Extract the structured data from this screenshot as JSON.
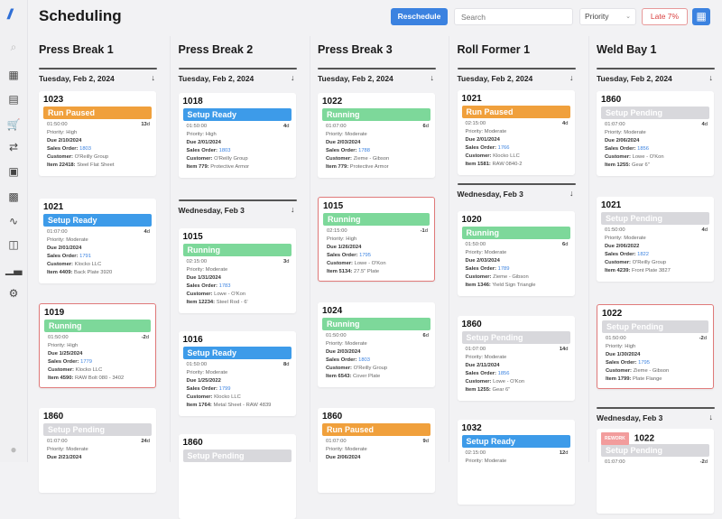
{
  "app": {
    "title": "Scheduling"
  },
  "toolbar": {
    "reschedule_label": "Reschedule",
    "search_placeholder": "Search",
    "sort_value": "Priority",
    "late_badge": "Late 7%"
  },
  "sidebar": {
    "items": [
      "search-icon",
      "dashboard-icon",
      "clipboard-icon",
      "cart-icon",
      "transfer-icon",
      "calendar-icon",
      "machines-icon",
      "activity-icon",
      "inventory-icon",
      "reports-icon",
      "settings-icon",
      "user-icon"
    ]
  },
  "status_colors": {
    "Run Paused": "#f0a03c",
    "Setup Ready": "#3d9be9",
    "Running": "#7dd89a",
    "Setup Pending": "#d8d8dc"
  },
  "labels": {
    "priority": "Priority: ",
    "due": "Due ",
    "sales_order": "Sales Order: ",
    "customer": "Customer: ",
    "item": "Item ",
    "rework": "REWORK",
    "day_suffix": "d"
  },
  "columns": [
    {
      "name": "Press Break 1",
      "entries": [
        {
          "type": "date",
          "label": "Tuesday, Feb 2, 2024"
        },
        {
          "type": "card",
          "id": "1023",
          "status": "Run Paused",
          "time": "01:50:00",
          "days": "13",
          "priority": "High",
          "due": "2/10/2024",
          "sales_order": "1803",
          "customer": "O'Reilly Group",
          "item_no": "22418:",
          "item_desc": "Steel Flat Sheet"
        },
        {
          "type": "card",
          "id": "1021",
          "status": "Setup Ready",
          "time": "01:07:00",
          "days": "4",
          "priority": "Moderate",
          "due": "2/01/2024",
          "sales_order": "1791",
          "customer": "Klocko LLC",
          "item_no": "4409:",
          "item_desc": "Back Plate 3920"
        },
        {
          "type": "card",
          "id": "1019",
          "late": true,
          "status": "Running",
          "time": "01:50:00",
          "days": "-2",
          "priority": "High",
          "due": "1/25/2024",
          "sales_order": "1779",
          "customer": "Klocko LLC",
          "item_no": "4590:",
          "item_desc": "RAW Bolt 080 - 3402"
        },
        {
          "type": "card",
          "id": "1860",
          "status": "Setup Pending",
          "time": "01:07:00",
          "days": "24",
          "priority": "Moderate",
          "due": "2/21/2024"
        }
      ]
    },
    {
      "name": "Press Break 2",
      "entries": [
        {
          "type": "date",
          "label": "Tuesday, Feb 2, 2024"
        },
        {
          "type": "card",
          "id": "1018",
          "status": "Setup Ready",
          "time": "01:50:00",
          "days": "4",
          "priority": "High",
          "due": "2/01/2024",
          "sales_order": "1803",
          "customer": "O'Reilly Group",
          "item_no": "779:",
          "item_desc": "Protective Armor"
        },
        {
          "type": "date",
          "label": "Wednesday, Feb 3"
        },
        {
          "type": "card",
          "id": "1015",
          "status": "Running",
          "time": "02:15:00",
          "days": "3",
          "priority": "Moderate",
          "due": "1/31/2024",
          "sales_order": "1783",
          "customer": "Lowe - O'Kon",
          "item_no": "12234:",
          "item_desc": "Steel Rod - 6'"
        },
        {
          "type": "card",
          "id": "1016",
          "status": "Setup Ready",
          "time": "01:50:00",
          "days": "8",
          "priority": "Moderate",
          "due": "1/25/2022",
          "sales_order": "1799",
          "customer": "Klocko LLC",
          "item_no": "1764:",
          "item_desc": "Metal Sheet - RAW 4839"
        },
        {
          "type": "card",
          "id": "1860",
          "status": "Setup Pending"
        }
      ]
    },
    {
      "name": "Press Break 3",
      "entries": [
        {
          "type": "date",
          "label": "Tuesday, Feb 2, 2024"
        },
        {
          "type": "card",
          "id": "1022",
          "status": "Running",
          "time": "01:07:00",
          "days": "6",
          "priority": "Moderate",
          "due": "2/03/2024",
          "sales_order": "1788",
          "customer": "Zieme - Gibson",
          "item_no": "779:",
          "item_desc": "Protective Armor"
        },
        {
          "type": "card",
          "id": "1015",
          "late": true,
          "status": "Running",
          "time": "02:15:00",
          "days": "-1",
          "priority": "High",
          "due": "1/26/2024",
          "sales_order": "1795",
          "customer": "Lowe - O'Kon",
          "item_no": "5134:",
          "item_desc": "27.5\" Plate"
        },
        {
          "type": "card",
          "id": "1024",
          "status": "Running",
          "time": "01:50:00",
          "days": "6",
          "priority": "Moderate",
          "due": "2/03/2024",
          "sales_order": "1803",
          "customer": "O'Reilly Group",
          "item_no": "6543:",
          "item_desc": "Cover Plate"
        },
        {
          "type": "card",
          "id": "1860",
          "status": "Run Paused",
          "time": "01:07:00",
          "days": "9",
          "priority": "Moderate",
          "due": "2/06/2024"
        }
      ]
    },
    {
      "name": "Roll Former 1",
      "entries": [
        {
          "type": "date",
          "label": "Tuesday, Feb 2, 2024"
        },
        {
          "type": "card",
          "id": "1021",
          "status": "Run Paused",
          "time": "02:15:00",
          "days": "4",
          "priority": "Moderate",
          "due": "2/01/2024",
          "sales_order": "1766",
          "customer": "Klocko LLC",
          "item_no": "1581:",
          "item_desc": "RAW 0840-2"
        },
        {
          "type": "date",
          "label": "Wednesday, Feb 3"
        },
        {
          "type": "card",
          "id": "1020",
          "status": "Running",
          "time": "01:50:00",
          "days": "6",
          "priority": "Moderate",
          "due": "2/03/2024",
          "sales_order": "1789",
          "customer": "Zieme - Gibson",
          "item_no": "1346:",
          "item_desc": "Yield Sign Triangle"
        },
        {
          "type": "card",
          "id": "1860",
          "status": "Setup Pending",
          "time": "01:07:00",
          "days": "14",
          "priority": "Moderate",
          "due": "2/11/2024",
          "sales_order": "1856",
          "customer": "Lowe - O'Kon",
          "item_no": "1255:",
          "item_desc": "Gear 6\""
        },
        {
          "type": "card",
          "id": "1032",
          "status": "Setup Ready",
          "time": "02:15:00",
          "days": "12",
          "priority": "Moderate"
        }
      ]
    },
    {
      "name": "Weld Bay 1",
      "entries": [
        {
          "type": "date",
          "label": "Tuesday, Feb 2, 2024"
        },
        {
          "type": "card",
          "id": "1860",
          "status": "Setup Pending",
          "time": "01:07:00",
          "days": "4",
          "priority": "Moderate",
          "due": "2/06/2024",
          "sales_order": "1856",
          "customer": "Lowe - O'Kon",
          "item_no": "1255:",
          "item_desc": "Gear 6\""
        },
        {
          "type": "card",
          "id": "1021",
          "status": "Setup Pending",
          "time": "01:50:00",
          "days": "4",
          "priority": "Moderate",
          "due": "2/06/2022",
          "sales_order": "1822",
          "customer": "O'Reilly Group",
          "item_no": "4239:",
          "item_desc": "Front Plate 3827"
        },
        {
          "type": "card",
          "id": "1022",
          "late": true,
          "status": "Setup Pending",
          "time": "01:50:00",
          "days": "-2",
          "priority": "High",
          "due": "1/30/2024",
          "sales_order": "1795",
          "customer": "Zieme - Gibson",
          "item_no": "1799:",
          "item_desc": "Plate Flange"
        },
        {
          "type": "date",
          "label": "Wednesday, Feb 3"
        },
        {
          "type": "card",
          "id": "1022",
          "rework": true,
          "status": "Setup Pending",
          "time": "01:07:00",
          "days": "-2"
        }
      ]
    }
  ]
}
